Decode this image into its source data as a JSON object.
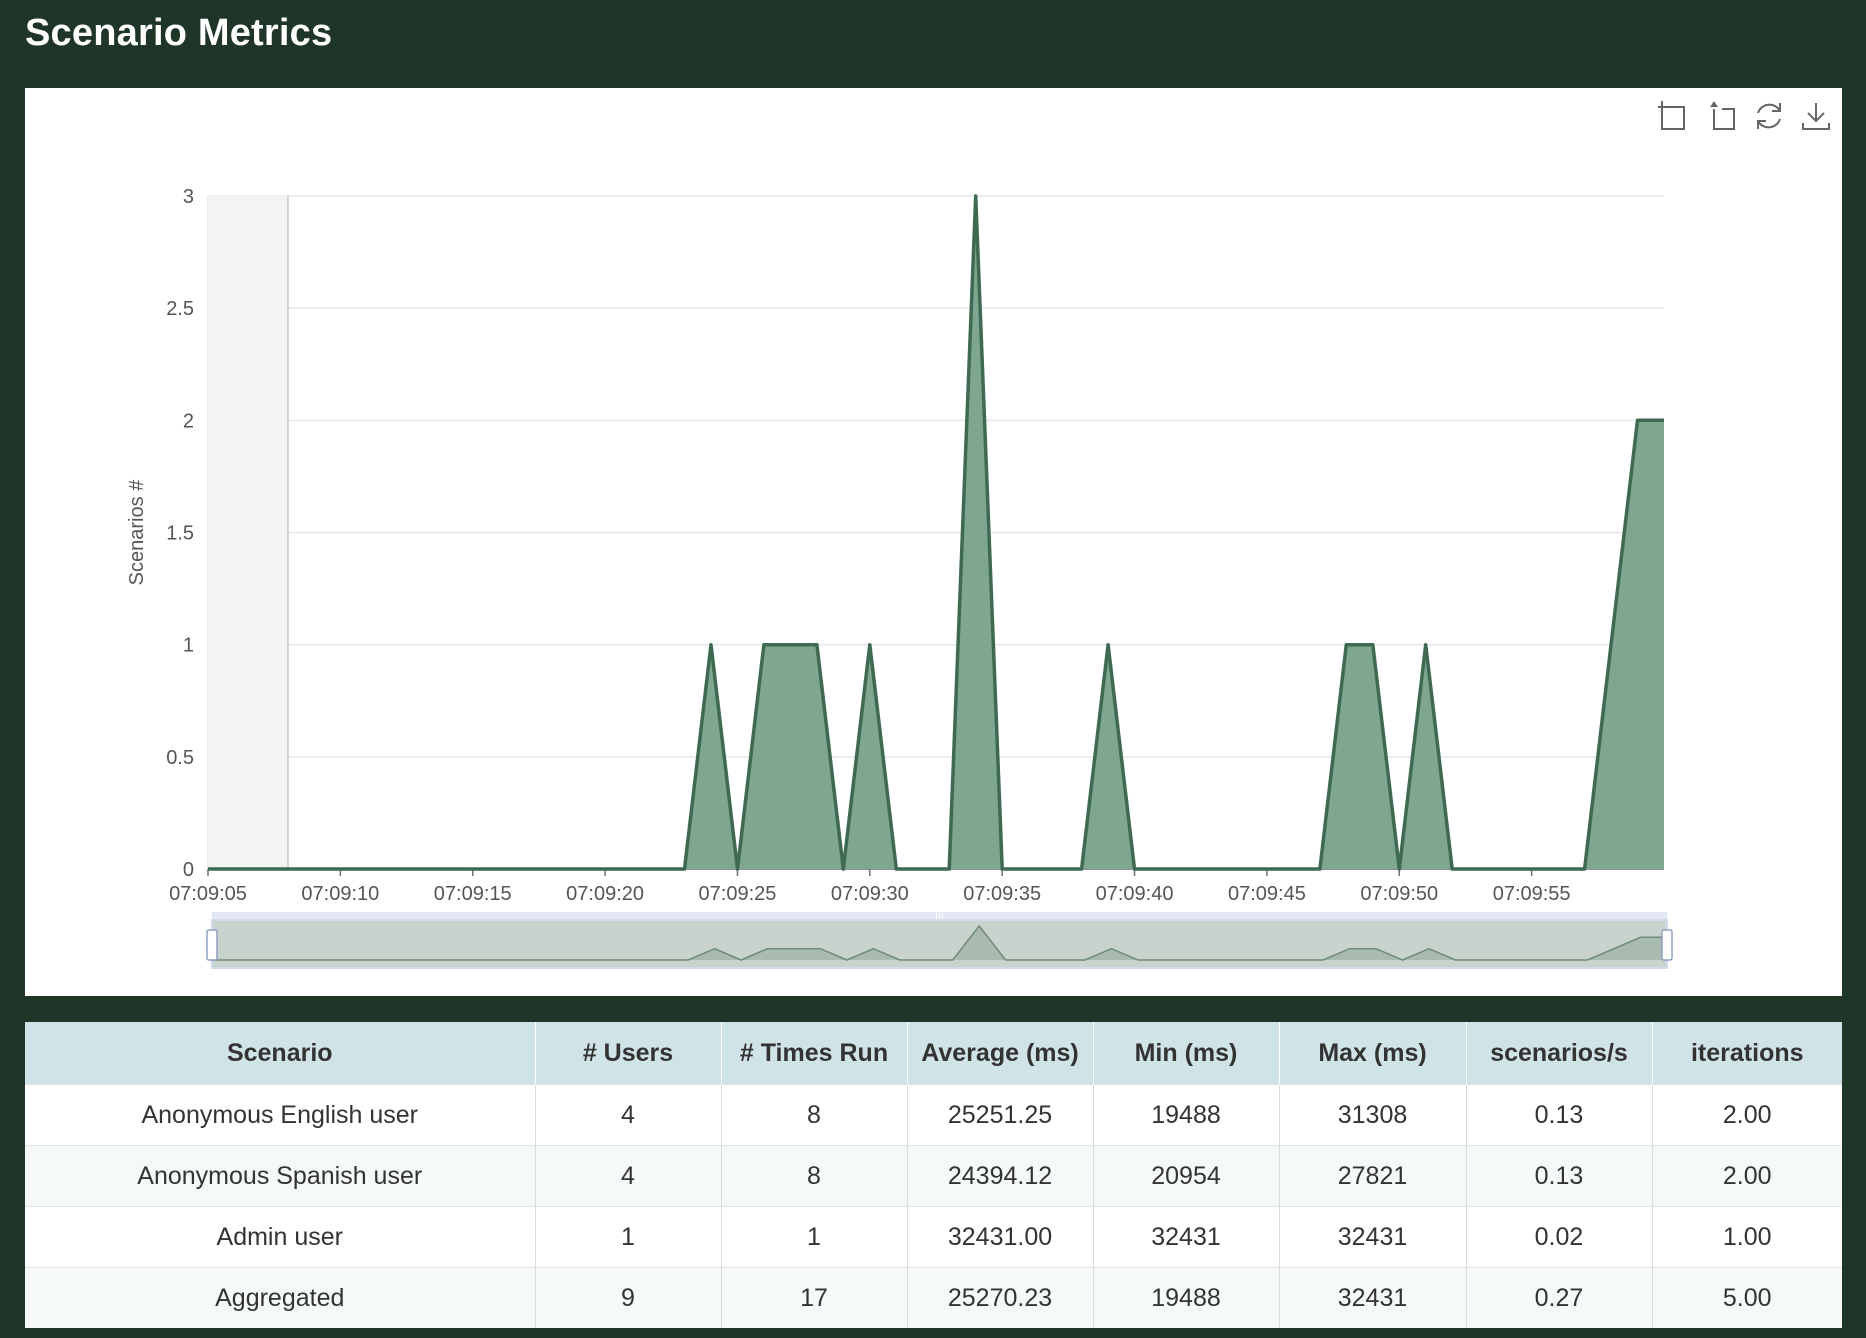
{
  "page": {
    "title": "Scenario Metrics"
  },
  "colors": {
    "background": "#1f3528",
    "area_fill": "#7fa690",
    "line": "#3f6a52",
    "header_bg": "#d0e4e7"
  },
  "toolbox": {
    "icons": [
      "zoom-icon",
      "zoom-reset-icon",
      "restore-icon",
      "download-icon"
    ]
  },
  "chart_data": {
    "type": "area",
    "ylabel": "Scenarios #",
    "ylim": [
      0,
      3
    ],
    "yticks": [
      "0",
      "0.5",
      "1",
      "1.5",
      "2",
      "2.5",
      "3"
    ],
    "xticks": [
      "07:09:05",
      "07:09:10",
      "07:09:15",
      "07:09:20",
      "07:09:25",
      "07:09:30",
      "07:09:35",
      "07:09:40",
      "07:09:45",
      "07:09:50",
      "07:09:55"
    ],
    "x_start": "07:09:05",
    "x_end": "07:10:00",
    "grid": true,
    "data_zoom": true,
    "points": [
      [
        "07:09:05",
        0
      ],
      [
        "07:09:23",
        0
      ],
      [
        "07:09:24",
        1
      ],
      [
        "07:09:25",
        0
      ],
      [
        "07:09:26",
        1
      ],
      [
        "07:09:28",
        1
      ],
      [
        "07:09:29",
        0
      ],
      [
        "07:09:30",
        1
      ],
      [
        "07:09:31",
        0
      ],
      [
        "07:09:33",
        0
      ],
      [
        "07:09:34",
        3
      ],
      [
        "07:09:35",
        0
      ],
      [
        "07:09:38",
        0
      ],
      [
        "07:09:39",
        1
      ],
      [
        "07:09:40",
        0
      ],
      [
        "07:09:47",
        0
      ],
      [
        "07:09:48",
        1
      ],
      [
        "07:09:49",
        1
      ],
      [
        "07:09:50",
        0
      ],
      [
        "07:09:51",
        1
      ],
      [
        "07:09:52",
        0
      ],
      [
        "07:09:57",
        0
      ],
      [
        "07:09:59",
        2
      ],
      [
        "07:10:00",
        2
      ]
    ]
  },
  "table": {
    "headers": [
      "Scenario",
      "# Users",
      "# Times Run",
      "Average (ms)",
      "Min (ms)",
      "Max (ms)",
      "scenarios/s",
      "iterations"
    ],
    "rows": [
      [
        "Anonymous English user",
        "4",
        "8",
        "25251.25",
        "19488",
        "31308",
        "0.13",
        "2.00"
      ],
      [
        "Anonymous Spanish user",
        "4",
        "8",
        "24394.12",
        "20954",
        "27821",
        "0.13",
        "2.00"
      ],
      [
        "Admin user",
        "1",
        "1",
        "32431.00",
        "32431",
        "32431",
        "0.02",
        "1.00"
      ],
      [
        "Aggregated",
        "9",
        "17",
        "25270.23",
        "19488",
        "32431",
        "0.27",
        "5.00"
      ]
    ]
  }
}
